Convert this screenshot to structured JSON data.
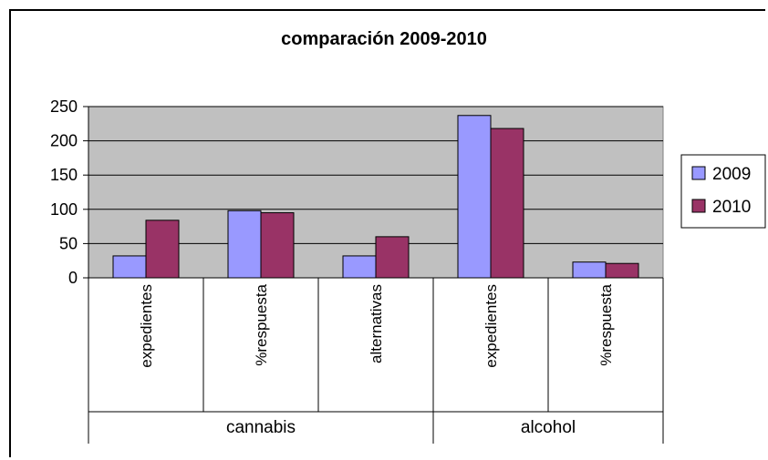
{
  "chart_data": {
    "type": "bar",
    "title": "comparación 2009-2010",
    "xlabel": "",
    "ylabel": "",
    "ylim": [
      0,
      250
    ],
    "yticks": [
      0,
      50,
      100,
      150,
      200,
      250
    ],
    "grid": true,
    "legend_position": "right",
    "groups": [
      {
        "name": "cannabis",
        "categories": [
          "expedientes",
          "%respuesta",
          "alternativas"
        ]
      },
      {
        "name": "alcohol",
        "categories": [
          "expedientes",
          "%respuesta"
        ]
      }
    ],
    "categories": [
      "expedientes",
      "%respuesta",
      "alternativas",
      "expedientes",
      "%respuesta"
    ],
    "series": [
      {
        "name": "2009",
        "color": "#9999ff",
        "values": [
          32,
          98,
          32,
          237,
          23
        ]
      },
      {
        "name": "2010",
        "color": "#993366",
        "values": [
          84,
          95,
          60,
          218,
          21
        ]
      }
    ],
    "plot_background": "#c0c0c0"
  }
}
